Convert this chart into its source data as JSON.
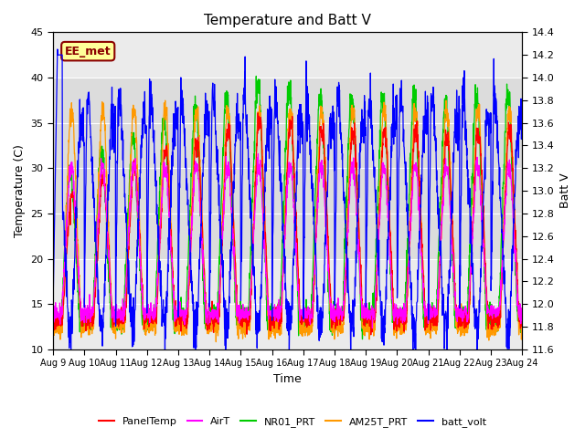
{
  "title": "Temperature and Batt V",
  "xlabel": "Time",
  "ylabel_left": "Temperature (C)",
  "ylabel_right": "Batt V",
  "annotation": "EE_met",
  "xlim": [
    0,
    15
  ],
  "ylim_left": [
    10,
    45
  ],
  "ylim_right": [
    11.6,
    14.4
  ],
  "xtick_labels": [
    "Aug 9",
    "Aug 10",
    "Aug 11",
    "Aug 12",
    "Aug 13",
    "Aug 14",
    "Aug 15",
    "Aug 16",
    "Aug 17",
    "Aug 18",
    "Aug 19",
    "Aug 20",
    "Aug 21",
    "Aug 22",
    "Aug 23",
    "Aug 24"
  ],
  "yticks_left": [
    10,
    15,
    20,
    25,
    30,
    35,
    40,
    45
  ],
  "yticks_right": [
    11.6,
    11.8,
    12.0,
    12.2,
    12.4,
    12.6,
    12.8,
    13.0,
    13.2,
    13.4,
    13.6,
    13.8,
    14.0,
    14.2,
    14.4
  ],
  "legend": [
    {
      "label": "PanelTemp",
      "color": "#FF0000"
    },
    {
      "label": "AirT",
      "color": "#FF00FF"
    },
    {
      "label": "NR01_PRT",
      "color": "#00CC00"
    },
    {
      "label": "AM25T_PRT",
      "color": "#FF9900"
    },
    {
      "label": "batt_volt",
      "color": "#0000FF"
    }
  ],
  "background_color": "#FFFFFF",
  "plot_bg_color": "#EBEBEB",
  "grid_color": "#FFFFFF",
  "shaded_band": [
    20,
    40
  ],
  "shaded_band_color": "#DCDCDC",
  "annotation_box_color": "#CC0000",
  "annotation_bg": "#FFFF99"
}
